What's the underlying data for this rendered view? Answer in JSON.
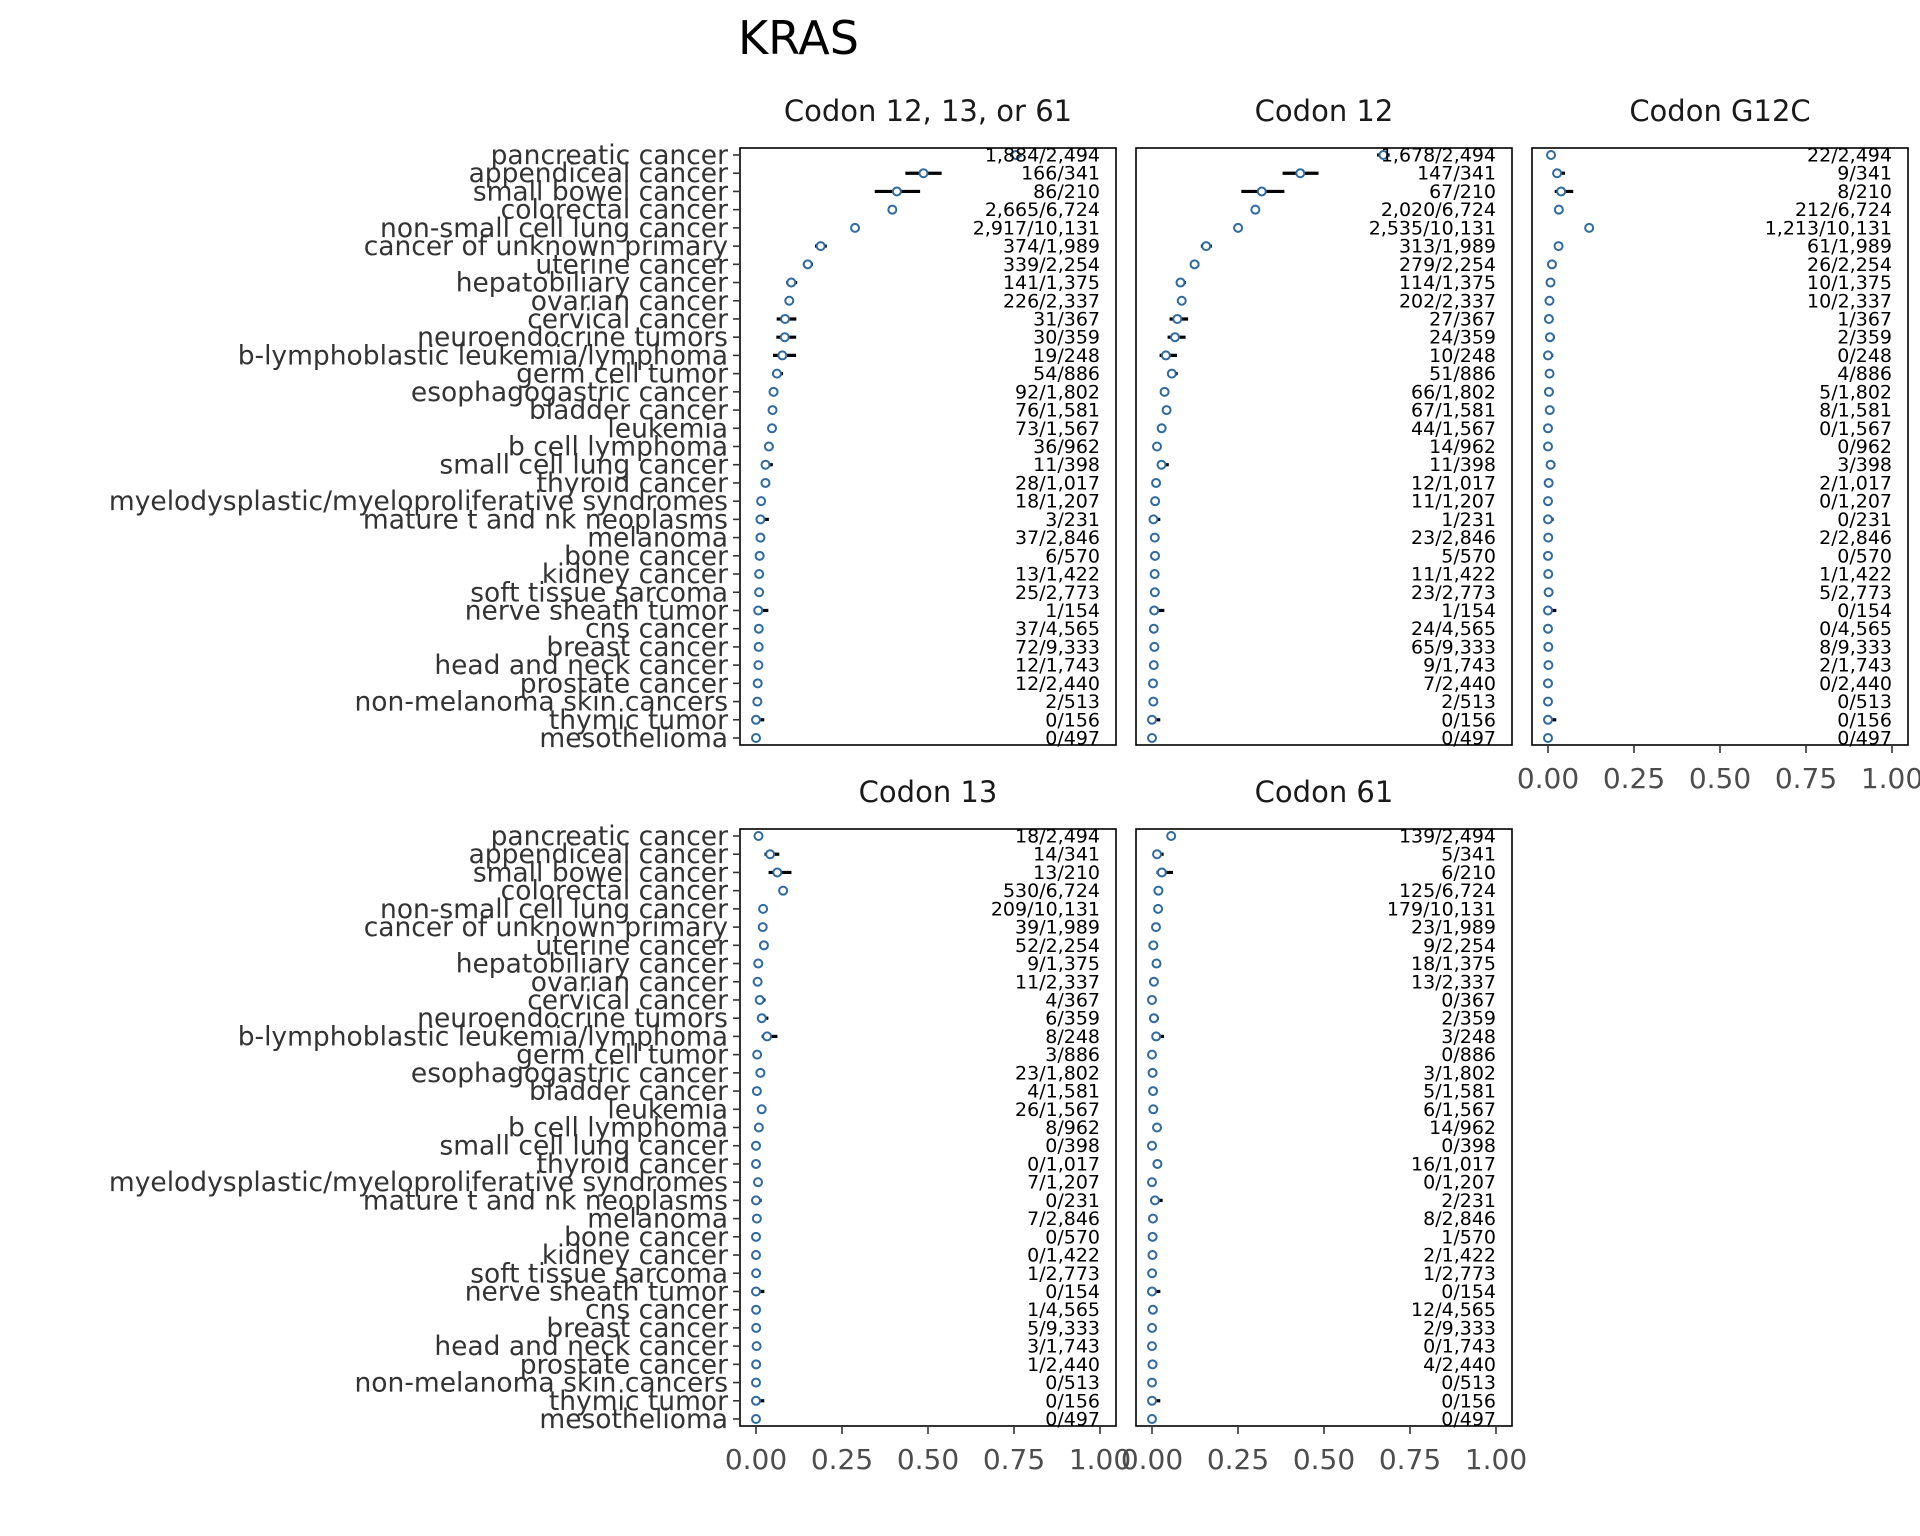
{
  "chart_data": {
    "type": "scatter",
    "title": "KRAS",
    "x_ticks": [
      "0.00",
      "0.25",
      "0.50",
      "0.75",
      "1.00"
    ],
    "xlim": [
      0,
      1
    ],
    "categories": [
      "pancreatic cancer",
      "appendiceal cancer",
      "small bowel cancer",
      "colorectal cancer",
      "non-small cell lung cancer",
      "cancer of unknown primary",
      "uterine cancer",
      "hepatobiliary cancer",
      "ovarian cancer",
      "cervical cancer",
      "neuroendocrine tumors",
      "b-lymphoblastic leukemia/lymphoma",
      "germ cell tumor",
      "esophagogastric cancer",
      "bladder cancer",
      "leukemia",
      "b cell lymphoma",
      "small cell lung cancer",
      "thyroid cancer",
      "myelodysplastic/myeloproliferative syndromes",
      "mature t and nk neoplasms",
      "melanoma",
      "bone cancer",
      "kidney cancer",
      "soft tissue sarcoma",
      "nerve sheath tumor",
      "cns cancer",
      "breast cancer",
      "head and neck cancer",
      "prostate cancer",
      "non-melanoma skin cancers",
      "thymic tumor",
      "mesothelioma"
    ],
    "panels": [
      {
        "title": "Codon 12, 13, or 61",
        "counts": [
          "1,884/2,494",
          "166/341",
          "86/210",
          "2,665/6,724",
          "2,917/10,131",
          "374/1,989",
          "339/2,254",
          "141/1,375",
          "226/2,337",
          "31/367",
          "30/359",
          "19/248",
          "54/886",
          "92/1,802",
          "76/1,581",
          "73/1,567",
          "36/962",
          "11/398",
          "28/1,017",
          "18/1,207",
          "3/231",
          "37/2,846",
          "6/570",
          "13/1,422",
          "25/2,773",
          "1/154",
          "37/4,565",
          "72/9,333",
          "12/1,743",
          "12/2,440",
          "2/513",
          "0/156",
          "0/497"
        ]
      },
      {
        "title": "Codon 12",
        "counts": [
          "1,678/2,494",
          "147/341",
          "67/210",
          "2,020/6,724",
          "2,535/10,131",
          "313/1,989",
          "279/2,254",
          "114/1,375",
          "202/2,337",
          "27/367",
          "24/359",
          "10/248",
          "51/886",
          "66/1,802",
          "67/1,581",
          "44/1,567",
          "14/962",
          "11/398",
          "12/1,017",
          "11/1,207",
          "1/231",
          "23/2,846",
          "5/570",
          "11/1,422",
          "23/2,773",
          "1/154",
          "24/4,565",
          "65/9,333",
          "9/1,743",
          "7/2,440",
          "2/513",
          "0/156",
          "0/497"
        ]
      },
      {
        "title": "Codon G12C",
        "counts": [
          "22/2,494",
          "9/341",
          "8/210",
          "212/6,724",
          "1,213/10,131",
          "61/1,989",
          "26/2,254",
          "10/1,375",
          "10/2,337",
          "1/367",
          "2/359",
          "0/248",
          "4/886",
          "5/1,802",
          "8/1,581",
          "0/1,567",
          "0/962",
          "3/398",
          "2/1,017",
          "0/1,207",
          "0/231",
          "2/2,846",
          "0/570",
          "1/1,422",
          "5/2,773",
          "0/154",
          "0/4,565",
          "8/9,333",
          "2/1,743",
          "0/2,440",
          "0/513",
          "0/156",
          "0/497"
        ]
      },
      {
        "title": "Codon 13",
        "counts": [
          "18/2,494",
          "14/341",
          "13/210",
          "530/6,724",
          "209/10,131",
          "39/1,989",
          "52/2,254",
          "9/1,375",
          "11/2,337",
          "4/367",
          "6/359",
          "8/248",
          "3/886",
          "23/1,802",
          "4/1,581",
          "26/1,567",
          "8/962",
          "0/398",
          "0/1,017",
          "7/1,207",
          "0/231",
          "7/2,846",
          "0/570",
          "0/1,422",
          "1/2,773",
          "0/154",
          "1/4,565",
          "5/9,333",
          "3/1,743",
          "1/2,440",
          "0/513",
          "0/156",
          "0/497"
        ]
      },
      {
        "title": "Codon 61",
        "counts": [
          "139/2,494",
          "5/341",
          "6/210",
          "125/6,724",
          "179/10,131",
          "23/1,989",
          "9/2,254",
          "18/1,375",
          "13/2,337",
          "0/367",
          "2/359",
          "3/248",
          "0/886",
          "3/1,802",
          "5/1,581",
          "6/1,567",
          "14/962",
          "0/398",
          "16/1,017",
          "0/1,207",
          "2/231",
          "8/2,846",
          "1/570",
          "2/1,422",
          "1/2,773",
          "0/154",
          "12/4,565",
          "2/9,333",
          "0/1,743",
          "4/2,440",
          "0/513",
          "0/156",
          "0/497"
        ]
      }
    ]
  }
}
